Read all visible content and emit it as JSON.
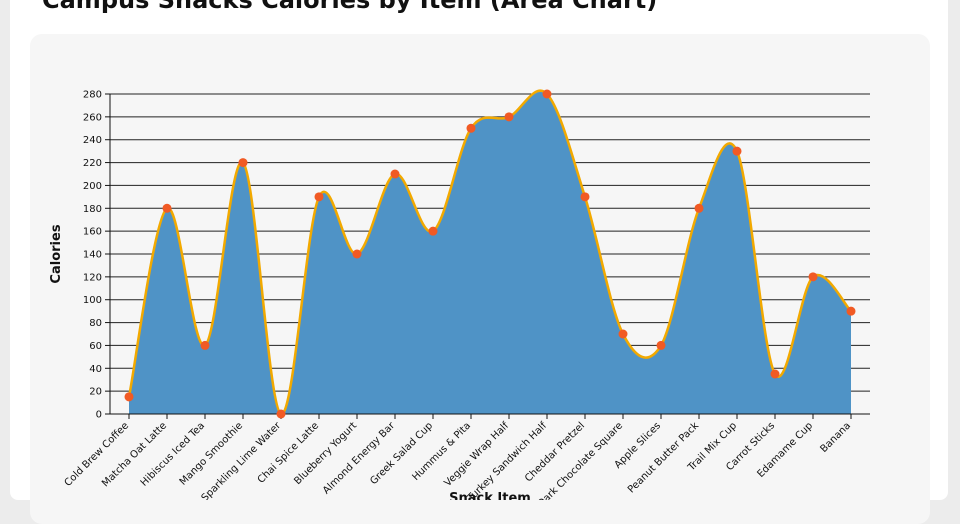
{
  "chart_data": {
    "type": "area",
    "title": "Campus Snacks Calories by Item (Area Chart)",
    "xlabel": "Snack Item",
    "ylabel": "Calories",
    "ylim": [
      0,
      280
    ],
    "yticks": [
      0,
      20,
      40,
      60,
      80,
      100,
      120,
      140,
      160,
      180,
      200,
      220,
      240,
      260,
      280
    ],
    "grid": true,
    "categories": [
      "Cold Brew Coffee",
      "Matcha Oat Latte",
      "Hibiscus Iced Tea",
      "Mango Smoothie",
      "Sparkling Lime Water",
      "Chai Spice Latte",
      "Blueberry Yogurt",
      "Almond Energy Bar",
      "Greek Salad Cup",
      "Hummus & Pita",
      "Veggie Wrap Half",
      "Turkey Sandwich Half",
      "Cheddar Pretzel",
      "Dark Chocolate Square",
      "Apple Slices",
      "Peanut Butter Pack",
      "Trail Mix Cup",
      "Carrot Sticks",
      "Edamame Cup",
      "Banana"
    ],
    "series": [
      {
        "values": [
          15,
          180,
          60,
          220,
          0,
          190,
          140,
          210,
          160,
          250,
          260,
          280,
          190,
          70,
          60,
          180,
          230,
          35,
          120,
          90
        ]
      }
    ],
    "colors": {
      "area_fill": "#4f93c6",
      "line": "#f2a900",
      "marker": "#f15a24",
      "grid": "#222222"
    }
  }
}
